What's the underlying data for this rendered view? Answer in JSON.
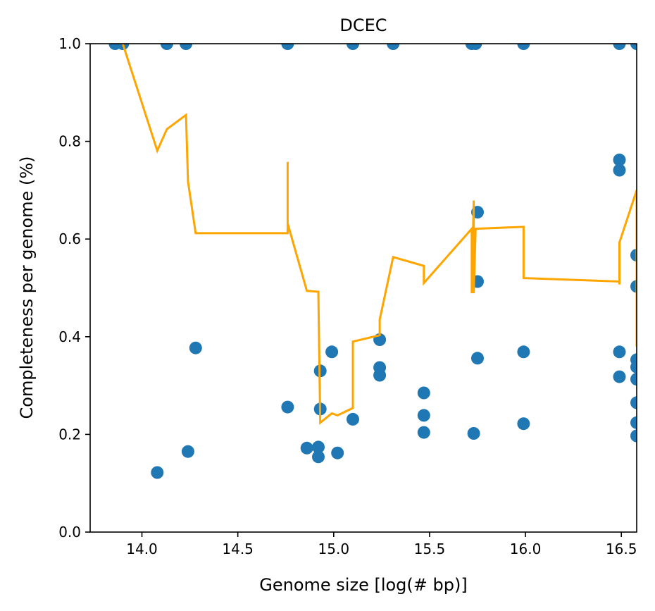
{
  "chart_data": {
    "type": "scatter",
    "title": "DCEC",
    "xlabel": "Genome size [log(# bp)]",
    "ylabel": "Completeness per genome (%)",
    "xlim": [
      13.73,
      16.58
    ],
    "ylim": [
      0.0,
      1.0
    ],
    "xticks": [
      "14.0",
      "14.5",
      "15.0",
      "15.5",
      "16.0",
      "16.5"
    ],
    "xtick_values": [
      14.0,
      14.5,
      15.0,
      15.5,
      16.0,
      16.5
    ],
    "yticks": [
      "0.0",
      "0.2",
      "0.4",
      "0.6",
      "0.8",
      "1.0"
    ],
    "ytick_values": [
      0.0,
      0.2,
      0.4,
      0.6,
      0.8,
      1.0
    ],
    "grid": false,
    "colors": {
      "points": "#1f77b4",
      "line": "#ffa500"
    },
    "series": [
      {
        "type": "scatter",
        "points": [
          [
            13.86,
            1.0
          ],
          [
            13.9,
            1.0
          ],
          [
            14.13,
            1.0
          ],
          [
            14.23,
            1.0
          ],
          [
            14.76,
            1.0
          ],
          [
            15.1,
            1.0
          ],
          [
            15.31,
            1.0
          ],
          [
            15.72,
            1.0
          ],
          [
            15.74,
            1.0
          ],
          [
            15.99,
            1.0
          ],
          [
            16.49,
            1.0
          ],
          [
            16.58,
            1.0
          ],
          [
            14.08,
            0.122
          ],
          [
            14.24,
            0.165
          ],
          [
            14.28,
            0.377
          ],
          [
            14.76,
            0.256
          ],
          [
            14.86,
            0.172
          ],
          [
            14.92,
            0.174
          ],
          [
            14.92,
            0.154
          ],
          [
            14.93,
            0.252
          ],
          [
            14.93,
            0.33
          ],
          [
            14.99,
            0.369
          ],
          [
            15.02,
            0.162
          ],
          [
            15.1,
            0.231
          ],
          [
            15.24,
            0.394
          ],
          [
            15.24,
            0.337
          ],
          [
            15.24,
            0.321
          ],
          [
            15.47,
            0.285
          ],
          [
            15.47,
            0.239
          ],
          [
            15.47,
            0.204
          ],
          [
            15.73,
            0.202
          ],
          [
            15.75,
            0.655
          ],
          [
            15.75,
            0.513
          ],
          [
            15.75,
            0.356
          ],
          [
            15.99,
            0.369
          ],
          [
            15.99,
            0.222
          ],
          [
            16.49,
            0.762
          ],
          [
            16.49,
            0.741
          ],
          [
            16.49,
            0.369
          ],
          [
            16.49,
            0.318
          ],
          [
            16.58,
            0.567
          ],
          [
            16.58,
            0.503
          ],
          [
            16.58,
            0.353
          ],
          [
            16.58,
            0.338
          ],
          [
            16.58,
            0.313
          ],
          [
            16.58,
            0.265
          ],
          [
            16.58,
            0.224
          ],
          [
            16.58,
            0.197
          ]
        ]
      },
      {
        "type": "line",
        "points": [
          [
            13.9,
            1.0
          ],
          [
            14.08,
            0.781
          ],
          [
            14.13,
            0.825
          ],
          [
            14.23,
            0.854
          ],
          [
            14.24,
            0.718
          ],
          [
            14.28,
            0.612
          ],
          [
            14.76,
            0.612
          ],
          [
            14.76,
            0.758
          ],
          [
            14.76,
            0.632
          ],
          [
            14.86,
            0.494
          ],
          [
            14.92,
            0.492
          ],
          [
            14.93,
            0.224
          ],
          [
            14.99,
            0.243
          ],
          [
            15.02,
            0.239
          ],
          [
            15.1,
            0.254
          ],
          [
            15.1,
            0.39
          ],
          [
            15.24,
            0.403
          ],
          [
            15.24,
            0.435
          ],
          [
            15.31,
            0.563
          ],
          [
            15.47,
            0.545
          ],
          [
            15.47,
            0.51
          ],
          [
            15.72,
            0.621
          ],
          [
            15.72,
            0.489
          ],
          [
            15.73,
            0.679
          ],
          [
            15.73,
            0.489
          ],
          [
            15.74,
            0.621
          ],
          [
            15.99,
            0.625
          ],
          [
            15.99,
            0.52
          ],
          [
            16.49,
            0.513
          ],
          [
            16.49,
            0.553
          ],
          [
            16.49,
            0.507
          ],
          [
            16.49,
            0.593
          ],
          [
            16.58,
            0.7
          ],
          [
            16.58,
            0.38
          ]
        ]
      }
    ]
  }
}
